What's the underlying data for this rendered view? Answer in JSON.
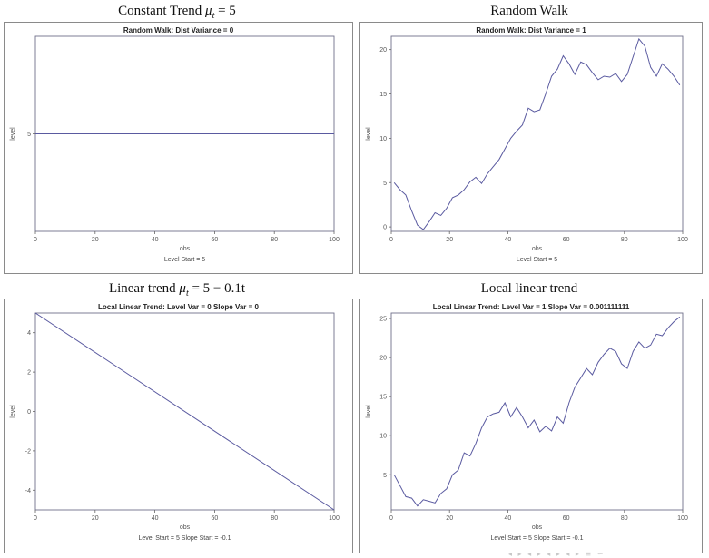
{
  "panels": [
    {
      "heading": {
        "pre": "Constant Trend ",
        "mu": "μ",
        "sub": "t",
        "post": " = 5"
      },
      "chart_data": {
        "type": "line",
        "title": "Random Walk: Dist Variance = 0",
        "xlabel": "obs",
        "ylabel": "level",
        "footnote": "Level Start = 5",
        "xlim": [
          0,
          100
        ],
        "ylim": [
          1.7,
          8.3
        ],
        "xticks": [
          0,
          20,
          40,
          60,
          80,
          100
        ],
        "yticks": [
          5
        ],
        "x": [
          0,
          100
        ],
        "y": [
          5,
          5
        ]
      }
    },
    {
      "heading": {
        "pre": "Random Walk",
        "mu": "",
        "sub": "",
        "post": ""
      },
      "chart_data": {
        "type": "line",
        "title": "Random Walk: Dist Variance = 1",
        "xlabel": "obs",
        "ylabel": "level",
        "footnote": "Level Start = 5",
        "xlim": [
          0,
          100
        ],
        "ylim": [
          -0.5,
          21.5
        ],
        "xticks": [
          0,
          20,
          40,
          60,
          80,
          100
        ],
        "yticks": [
          0,
          5,
          10,
          15,
          20
        ],
        "x": [
          1,
          3,
          5,
          7,
          9,
          11,
          13,
          15,
          17,
          19,
          21,
          23,
          25,
          27,
          29,
          31,
          33,
          35,
          37,
          39,
          41,
          43,
          45,
          47,
          49,
          51,
          53,
          55,
          57,
          59,
          61,
          63,
          65,
          67,
          69,
          71,
          73,
          75,
          77,
          79,
          81,
          83,
          85,
          87,
          89,
          91,
          93,
          95,
          97,
          99
        ],
        "y": [
          5.0,
          4.2,
          3.6,
          1.8,
          0.2,
          -0.3,
          0.6,
          1.6,
          1.3,
          2.1,
          3.3,
          3.6,
          4.2,
          5.1,
          5.6,
          4.9,
          6.0,
          6.8,
          7.6,
          8.8,
          10.0,
          10.8,
          11.5,
          13.4,
          13.0,
          13.2,
          15.0,
          17.0,
          17.8,
          19.3,
          18.4,
          17.2,
          18.6,
          18.3,
          17.4,
          16.6,
          17.0,
          16.9,
          17.3,
          16.4,
          17.2,
          19.2,
          21.2,
          20.4,
          18.0,
          17.0,
          18.4,
          17.8,
          17.0,
          16.0
        ]
      }
    },
    {
      "heading": {
        "pre": "Linear trend ",
        "mu": "μ",
        "sub": "t",
        "post": " = 5 − 0.1t"
      },
      "chart_data": {
        "type": "line",
        "title": "Local Linear Trend: Level Var = 0 Slope Var = 0",
        "xlabel": "obs",
        "ylabel": "level",
        "footnote": "Level Start = 5 Slope Start = -0.1",
        "xlim": [
          0,
          100
        ],
        "ylim": [
          -5,
          5
        ],
        "xticks": [
          0,
          20,
          40,
          60,
          80,
          100
        ],
        "yticks": [
          -4,
          -2,
          0,
          2,
          4
        ],
        "x": [
          0,
          100
        ],
        "y": [
          5,
          -5
        ]
      }
    },
    {
      "heading": {
        "pre": "Local linear trend",
        "mu": "",
        "sub": "",
        "post": ""
      },
      "chart_data": {
        "type": "line",
        "title": "Local Linear Trend: Level Var = 1 Slope Var = 0.001111111",
        "xlabel": "obs",
        "ylabel": "level",
        "footnote": "Level Start = 5 Slope Start = -0.1",
        "xlim": [
          0,
          100
        ],
        "ylim": [
          0.5,
          25.7
        ],
        "xticks": [
          0,
          20,
          40,
          60,
          80,
          100
        ],
        "yticks": [
          5,
          10,
          15,
          20,
          25
        ],
        "x": [
          1,
          3,
          5,
          7,
          9,
          11,
          13,
          15,
          17,
          19,
          21,
          23,
          25,
          27,
          29,
          31,
          33,
          35,
          37,
          39,
          41,
          43,
          45,
          47,
          49,
          51,
          53,
          55,
          57,
          59,
          61,
          63,
          65,
          67,
          69,
          71,
          73,
          75,
          77,
          79,
          81,
          83,
          85,
          87,
          89,
          91,
          93,
          95,
          97,
          99
        ],
        "y": [
          5.0,
          3.6,
          2.2,
          2.0,
          1.0,
          1.8,
          1.6,
          1.4,
          2.6,
          3.2,
          5.0,
          5.6,
          7.8,
          7.4,
          9.0,
          11.0,
          12.4,
          12.8,
          13.0,
          14.2,
          12.4,
          13.6,
          12.4,
          11.0,
          12.0,
          10.5,
          11.2,
          10.6,
          12.4,
          11.6,
          14.2,
          16.2,
          17.4,
          18.6,
          17.8,
          19.4,
          20.4,
          21.2,
          20.8,
          19.2,
          18.6,
          20.8,
          22.0,
          21.2,
          21.6,
          23.0,
          22.8,
          23.8,
          24.6,
          25.2
        ]
      }
    }
  ],
  "footer_icons": "◂ ▸ ◂ ▸ ◂ ▸ ◂ ▸ ≡ ∽"
}
